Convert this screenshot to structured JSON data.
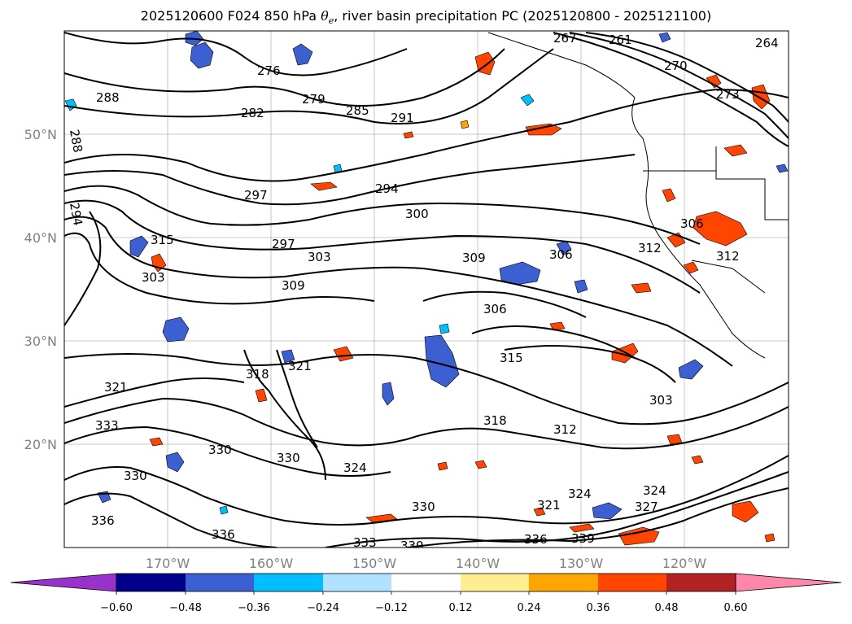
{
  "title": {
    "prefix": "2025120600 F024 850 hPa ",
    "theta_symbol": "θ",
    "theta_sub": "e",
    "suffix": ", river basin precipitation PC (2025120800 - 2025121100)"
  },
  "axes": {
    "lat_labels": [
      "50°N",
      "40°N",
      "30°N",
      "20°N"
    ],
    "lon_labels": [
      "170°W",
      "160°W",
      "150°W",
      "140°W",
      "130°W",
      "120°W"
    ]
  },
  "colorbar": {
    "ticks": [
      "−0.60",
      "−0.48",
      "−0.36",
      "−0.24",
      "−0.12",
      "0.12",
      "0.24",
      "0.36",
      "0.48",
      "0.60"
    ],
    "colors": [
      "#9932cc",
      "#00008b",
      "#3c5fd1",
      "#00bfff",
      "#b0e2ff",
      "#ffffff",
      "#ffee90",
      "#ffa500",
      "#ff4500",
      "#b22222",
      "#ff88aa"
    ]
  },
  "contour_labels": [
    "288",
    "288",
    "282",
    "279",
    "285",
    "291",
    "294",
    "297",
    "297",
    "300",
    "303",
    "309",
    "309",
    "306",
    "306",
    "315",
    "318",
    "315",
    "321",
    "321",
    "333",
    "330",
    "330",
    "330",
    "336",
    "336",
    "318",
    "312",
    "303",
    "306",
    "303",
    "312",
    "321",
    "324",
    "324",
    "324",
    "327",
    "330",
    "333",
    "339",
    "336",
    "339",
    "273",
    "270",
    "267",
    "264",
    "276",
    "261",
    "294",
    "312"
  ],
  "colors": {
    "negative_patch_dark": "#3c5fd1",
    "negative_patch_light": "#00bfff",
    "positive_patch_orange": "#ffa500",
    "positive_patch_red": "#ff4500"
  }
}
